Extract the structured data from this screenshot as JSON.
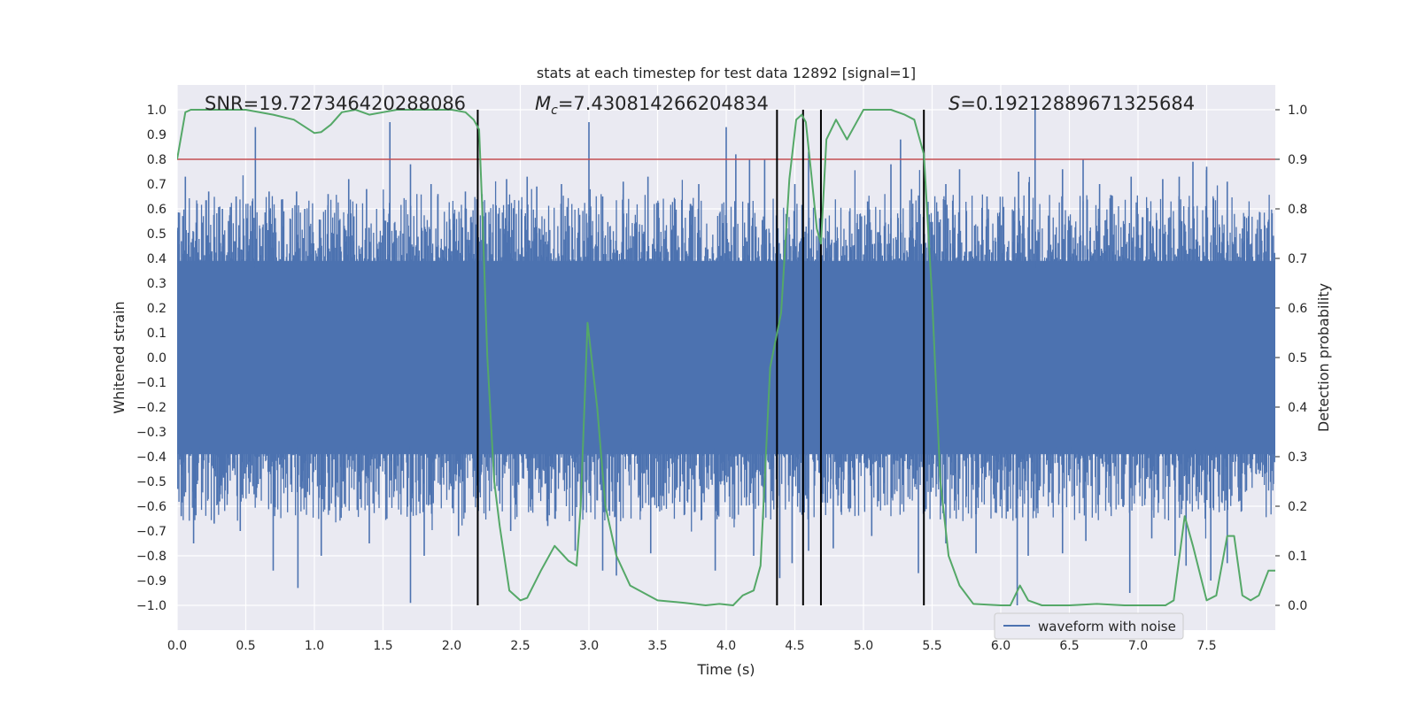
{
  "chart_data": {
    "type": "line",
    "title": "stats at each timestep for test data 12892 [signal=1]",
    "xlabel": "Time (s)",
    "ylabel_left": "Whitened strain",
    "ylabel_right": "Detection probability",
    "xlim": [
      0.0,
      8.0
    ],
    "ylim_left": [
      -1.1,
      1.1
    ],
    "ylim_right": [
      -0.05,
      1.05
    ],
    "xticks": [
      0.0,
      0.5,
      1.0,
      1.5,
      2.0,
      2.5,
      3.0,
      3.5,
      4.0,
      4.5,
      5.0,
      5.5,
      6.0,
      6.5,
      7.0,
      7.5
    ],
    "xtick_labels": [
      "0.0",
      "0.5",
      "1.0",
      "1.5",
      "2.0",
      "2.5",
      "3.0",
      "3.5",
      "4.0",
      "4.5",
      "5.0",
      "5.5",
      "6.0",
      "6.5",
      "7.0",
      "7.5"
    ],
    "yticks_left": [
      -1.0,
      -0.9,
      -0.8,
      -0.7,
      -0.6,
      -0.5,
      -0.4,
      -0.3,
      -0.2,
      -0.1,
      0.0,
      0.1,
      0.2,
      0.3,
      0.4,
      0.5,
      0.6,
      0.7,
      0.8,
      0.9,
      1.0
    ],
    "ytick_labels_left": [
      "−1.0",
      "−0.9",
      "−0.8",
      "−0.7",
      "−0.6",
      "−0.5",
      "−0.4",
      "−0.3",
      "−0.2",
      "−0.1",
      "0.0",
      "0.1",
      "0.2",
      "0.3",
      "0.4",
      "0.5",
      "0.6",
      "0.7",
      "0.8",
      "0.9",
      "1.0"
    ],
    "yticks_right": [
      0.0,
      0.1,
      0.2,
      0.3,
      0.4,
      0.5,
      0.6,
      0.7,
      0.8,
      0.9,
      1.0
    ],
    "ytick_labels_right": [
      "0.0",
      "0.1",
      "0.2",
      "0.3",
      "0.4",
      "0.5",
      "0.6",
      "0.7",
      "0.8",
      "0.9",
      "1.0"
    ],
    "annotations": {
      "snr": "SNR=19.727346420288086",
      "mc_symbol": "M",
      "mc_sub": "c",
      "mc_value": "=7.430814266204834",
      "s_symbol": "S",
      "s_value": "=0.19212889671325684"
    },
    "threshold": {
      "value": 0.9,
      "axis": "right",
      "color": "#c44e52"
    },
    "vlines": [
      2.19,
      4.37,
      4.56,
      4.69,
      5.44
    ],
    "waveform": {
      "name": "waveform with noise",
      "color": "#4c72b0",
      "dense_band": 0.39,
      "seed": 12892,
      "samples": 1800,
      "tall_peaks": [
        [
          0.06,
          0.73
        ],
        [
          0.23,
          0.67
        ],
        [
          0.33,
          0.6
        ],
        [
          0.43,
          0.65
        ],
        [
          0.57,
          0.93
        ],
        [
          0.67,
          0.67
        ],
        [
          0.87,
          0.67
        ],
        [
          0.93,
          0.6
        ],
        [
          1.1,
          0.66
        ],
        [
          1.25,
          0.72
        ],
        [
          1.38,
          0.68
        ],
        [
          1.55,
          0.95
        ],
        [
          1.7,
          0.78
        ],
        [
          1.85,
          0.7
        ],
        [
          1.9,
          0.66
        ],
        [
          2.1,
          0.67
        ],
        [
          2.23,
          0.57
        ],
        [
          2.4,
          0.72
        ],
        [
          2.55,
          0.73
        ],
        [
          2.62,
          0.69
        ],
        [
          2.8,
          0.7
        ],
        [
          3.0,
          0.95
        ],
        [
          3.1,
          0.65
        ],
        [
          3.25,
          0.71
        ],
        [
          3.43,
          0.73
        ],
        [
          3.8,
          0.7
        ],
        [
          4.0,
          0.93
        ],
        [
          4.07,
          0.82
        ],
        [
          4.17,
          0.8
        ],
        [
          4.28,
          0.8
        ],
        [
          4.5,
          0.7
        ],
        [
          4.6,
          0.83
        ],
        [
          5.03,
          0.63
        ],
        [
          5.2,
          0.78
        ],
        [
          5.27,
          0.88
        ],
        [
          5.35,
          0.68
        ],
        [
          5.6,
          0.7
        ],
        [
          5.7,
          0.76
        ],
        [
          5.9,
          0.65
        ],
        [
          6.13,
          0.75
        ],
        [
          6.25,
          1.0
        ],
        [
          6.45,
          0.76
        ],
        [
          6.6,
          0.8
        ],
        [
          6.72,
          0.7
        ],
        [
          6.95,
          0.73
        ],
        [
          7.18,
          0.72
        ],
        [
          7.3,
          0.73
        ],
        [
          7.4,
          0.79
        ],
        [
          7.5,
          0.77
        ],
        [
          7.65,
          0.71
        ]
      ],
      "deep_troughs": [
        [
          0.03,
          -0.64
        ],
        [
          0.12,
          -0.75
        ],
        [
          0.27,
          -0.67
        ],
        [
          0.46,
          -0.7
        ],
        [
          0.7,
          -0.86
        ],
        [
          0.88,
          -0.93
        ],
        [
          1.05,
          -0.8
        ],
        [
          1.4,
          -0.75
        ],
        [
          1.7,
          -0.99
        ],
        [
          1.8,
          -0.8
        ],
        [
          2.05,
          -0.72
        ],
        [
          2.43,
          -0.7
        ],
        [
          2.7,
          -0.68
        ],
        [
          2.9,
          -0.78
        ],
        [
          3.1,
          -0.86
        ],
        [
          3.2,
          -0.88
        ],
        [
          3.45,
          -0.79
        ],
        [
          3.92,
          -0.86
        ],
        [
          4.2,
          -0.8
        ],
        [
          4.39,
          -0.89
        ],
        [
          4.48,
          -0.83
        ],
        [
          4.6,
          -0.78
        ],
        [
          4.78,
          -0.77
        ],
        [
          5.06,
          -0.72
        ],
        [
          5.4,
          -0.87
        ],
        [
          5.6,
          -0.75
        ],
        [
          5.82,
          -0.79
        ],
        [
          6.12,
          -1.0
        ],
        [
          6.2,
          -0.8
        ],
        [
          6.45,
          -0.79
        ],
        [
          6.62,
          -0.74
        ],
        [
          6.94,
          -0.95
        ],
        [
          7.1,
          -0.73
        ],
        [
          7.27,
          -0.8
        ],
        [
          7.35,
          -0.84
        ],
        [
          7.53,
          -0.9
        ],
        [
          7.65,
          -0.83
        ]
      ]
    },
    "probability": {
      "name": "detection probability",
      "color": "#55a868",
      "x": [
        0.0,
        0.06,
        0.1,
        0.2,
        0.5,
        0.7,
        0.85,
        1.0,
        1.05,
        1.12,
        1.2,
        1.3,
        1.4,
        1.5,
        1.6,
        1.8,
        2.0,
        2.1,
        2.16,
        2.2,
        2.22,
        2.26,
        2.31,
        2.35,
        2.42,
        2.5,
        2.55,
        2.65,
        2.75,
        2.85,
        2.91,
        2.94,
        2.99,
        3.06,
        3.12,
        3.2,
        3.3,
        3.5,
        3.7,
        3.85,
        3.95,
        4.05,
        4.12,
        4.2,
        4.25,
        4.32,
        4.4,
        4.46,
        4.51,
        4.55,
        4.58,
        4.62,
        4.66,
        4.69,
        4.73,
        4.8,
        4.88,
        4.94,
        5.0,
        5.1,
        5.2,
        5.3,
        5.37,
        5.44,
        5.5,
        5.56,
        5.62,
        5.7,
        5.8,
        6.0,
        6.07,
        6.14,
        6.2,
        6.3,
        6.5,
        6.7,
        6.9,
        7.1,
        7.2,
        7.26,
        7.34,
        7.4,
        7.5,
        7.57,
        7.65,
        7.7,
        7.76,
        7.82,
        7.88,
        7.95,
        8.0
      ],
      "y": [
        0.9,
        0.995,
        1.0,
        1.0,
        1.0,
        0.99,
        0.98,
        0.953,
        0.955,
        0.97,
        0.995,
        1.0,
        0.99,
        0.995,
        1.0,
        1.0,
        1.0,
        0.995,
        0.98,
        0.96,
        0.82,
        0.5,
        0.25,
        0.16,
        0.03,
        0.01,
        0.015,
        0.07,
        0.12,
        0.09,
        0.08,
        0.2,
        0.57,
        0.4,
        0.2,
        0.1,
        0.04,
        0.01,
        0.005,
        0.0,
        0.003,
        0.0,
        0.02,
        0.03,
        0.08,
        0.48,
        0.59,
        0.86,
        0.98,
        0.99,
        0.975,
        0.87,
        0.76,
        0.73,
        0.94,
        0.98,
        0.94,
        0.97,
        1.0,
        1.0,
        1.0,
        0.99,
        0.98,
        0.91,
        0.62,
        0.25,
        0.1,
        0.04,
        0.003,
        0.0,
        0.0,
        0.04,
        0.01,
        0.0,
        0.0,
        0.003,
        0.0,
        0.0,
        0.0,
        0.01,
        0.18,
        0.12,
        0.01,
        0.02,
        0.14,
        0.14,
        0.02,
        0.01,
        0.02,
        0.07,
        0.07
      ]
    },
    "legend": {
      "position": "lower-right-outside",
      "entries": [
        "waveform with noise"
      ]
    }
  }
}
